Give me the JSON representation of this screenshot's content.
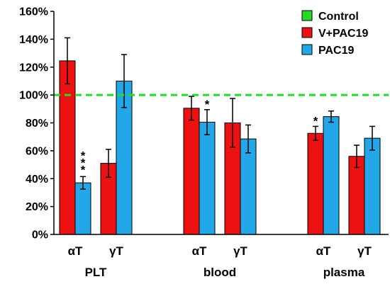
{
  "chart_data": {
    "type": "bar",
    "y_ticks": [
      "0%",
      "20%",
      "40%",
      "60%",
      "80%",
      "100%",
      "120%",
      "140%",
      "160%"
    ],
    "ylim": [
      0,
      160
    ],
    "categories": [
      {
        "group": "PLT",
        "label": "αT"
      },
      {
        "group": "PLT",
        "label": "γT"
      },
      {
        "group": "blood",
        "label": "αT"
      },
      {
        "group": "blood",
        "label": "γT"
      },
      {
        "group": "plasma",
        "label": "αT"
      },
      {
        "group": "plasma",
        "label": "γT"
      }
    ],
    "groups": [
      "PLT",
      "blood",
      "plasma"
    ],
    "series": [
      {
        "name": "V+PAC19",
        "color": "#ee1111",
        "values": [
          124.5,
          51,
          90.5,
          80,
          72.5,
          56
        ],
        "errors": [
          16.5,
          10,
          8.5,
          17.5,
          5,
          8
        ],
        "significance": [
          "",
          "",
          "",
          "",
          "*",
          ""
        ]
      },
      {
        "name": "PAC19",
        "color": "#22a8e8",
        "values": [
          37,
          110,
          80.5,
          68.5,
          84.5,
          69
        ],
        "errors": [
          4.5,
          19,
          9,
          10,
          4,
          8.5
        ],
        "significance": [
          "***",
          "",
          "*",
          "",
          "",
          ""
        ]
      }
    ],
    "reference_line": {
      "name": "Control",
      "value": 100,
      "color": "#22dd22",
      "style": "dashed"
    },
    "legend": {
      "placement": "top-right",
      "entries": [
        {
          "label": "Control",
          "color": "#22dd22"
        },
        {
          "label": "V+PAC19",
          "color": "#ee1111"
        },
        {
          "label": "PAC19",
          "color": "#22a8e8"
        }
      ]
    },
    "grid": false,
    "title": "",
    "xlabel": "",
    "ylabel": ""
  }
}
